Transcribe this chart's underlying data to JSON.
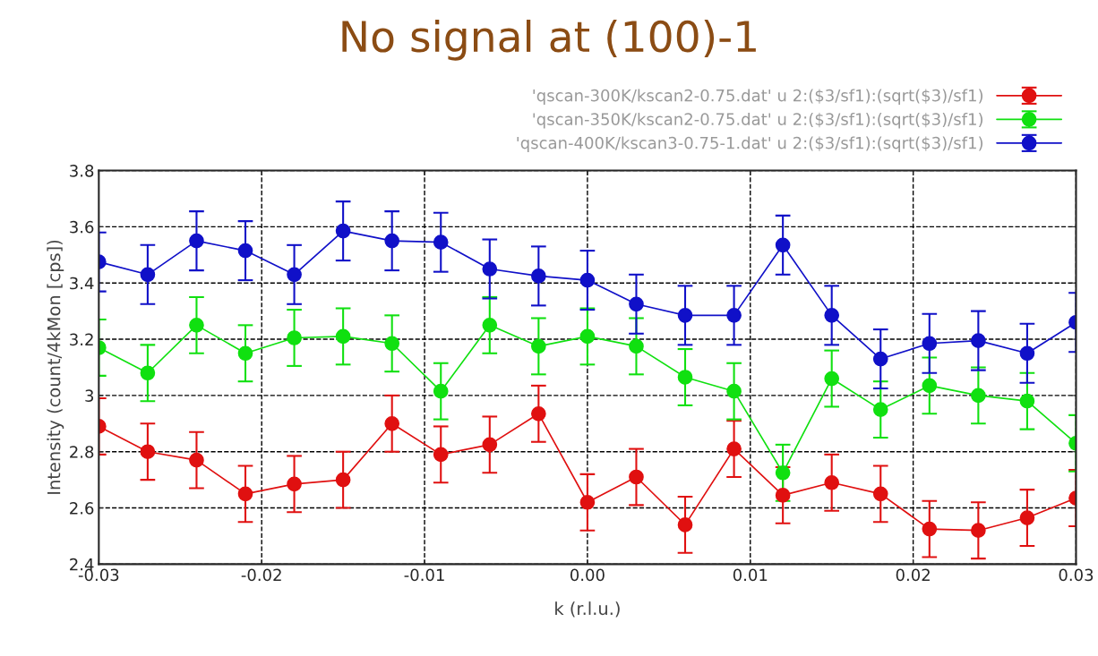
{
  "chart_data": {
    "type": "line",
    "title": "No signal at (100)-1",
    "xlabel": "k (r.l.u.)",
    "ylabel": "Intensity (count/4kMon [cps])",
    "x": [
      -0.03,
      -0.027,
      -0.024,
      -0.021,
      -0.018,
      -0.015,
      -0.012,
      -0.009,
      -0.006,
      -0.003,
      0.0,
      0.003,
      0.006,
      0.009,
      0.012,
      0.015,
      0.018,
      0.021,
      0.024,
      0.027,
      0.03
    ],
    "series": [
      {
        "name": "'qscan-300K/kscan2-0.75.dat' u 2:($3/sf1):(sqrt($3)/sf1)",
        "color": "#e01010",
        "values": [
          2.89,
          2.8,
          2.77,
          2.65,
          2.685,
          2.7,
          2.9,
          2.79,
          2.825,
          2.935,
          2.62,
          2.71,
          2.54,
          2.81,
          2.645,
          2.69,
          2.65,
          2.525,
          2.52,
          2.565,
          2.635
        ],
        "errors": [
          0.1,
          0.1,
          0.1,
          0.1,
          0.1,
          0.1,
          0.1,
          0.1,
          0.1,
          0.1,
          0.1,
          0.1,
          0.1,
          0.1,
          0.1,
          0.1,
          0.1,
          0.1,
          0.1,
          0.1,
          0.1
        ]
      },
      {
        "name": "'qscan-350K/kscan2-0.75.dat' u 2:($3/sf1):(sqrt($3)/sf1)",
        "color": "#10e010",
        "values": [
          3.17,
          3.08,
          3.25,
          3.15,
          3.205,
          3.21,
          3.185,
          3.015,
          3.25,
          3.175,
          3.21,
          3.175,
          3.065,
          3.015,
          2.725,
          3.06,
          2.95,
          3.035,
          3.0,
          2.98,
          2.83
        ],
        "errors": [
          0.1,
          0.1,
          0.1,
          0.1,
          0.1,
          0.1,
          0.1,
          0.1,
          0.1,
          0.1,
          0.1,
          0.1,
          0.1,
          0.1,
          0.1,
          0.1,
          0.1,
          0.1,
          0.1,
          0.1,
          0.1
        ]
      },
      {
        "name": "'qscan-400K/kscan3-0.75-1.dat' u 2:($3/sf1):(sqrt($3)/sf1)",
        "color": "#1010c8",
        "values": [
          3.475,
          3.43,
          3.55,
          3.515,
          3.43,
          3.585,
          3.55,
          3.545,
          3.45,
          3.425,
          3.41,
          3.325,
          3.285,
          3.285,
          3.535,
          3.285,
          3.13,
          3.185,
          3.195,
          3.15,
          3.26
        ],
        "errors": [
          0.105,
          0.105,
          0.105,
          0.105,
          0.105,
          0.105,
          0.105,
          0.105,
          0.105,
          0.105,
          0.105,
          0.105,
          0.105,
          0.105,
          0.105,
          0.105,
          0.105,
          0.105,
          0.105,
          0.105,
          0.105
        ]
      }
    ],
    "xlim": [
      -0.03,
      0.03
    ],
    "xticks": [
      -0.03,
      -0.02,
      -0.01,
      {
        "value": 0,
        "label": "0.00"
      },
      0.01,
      0.02,
      0.03
    ],
    "ylim": [
      2.4,
      3.8
    ],
    "yticks": [
      2.4,
      2.6,
      2.8,
      3,
      3.2,
      3.4,
      3.6,
      3.8
    ],
    "grid": true,
    "legend": "top right",
    "marker": "circle",
    "line_style": "solid"
  }
}
